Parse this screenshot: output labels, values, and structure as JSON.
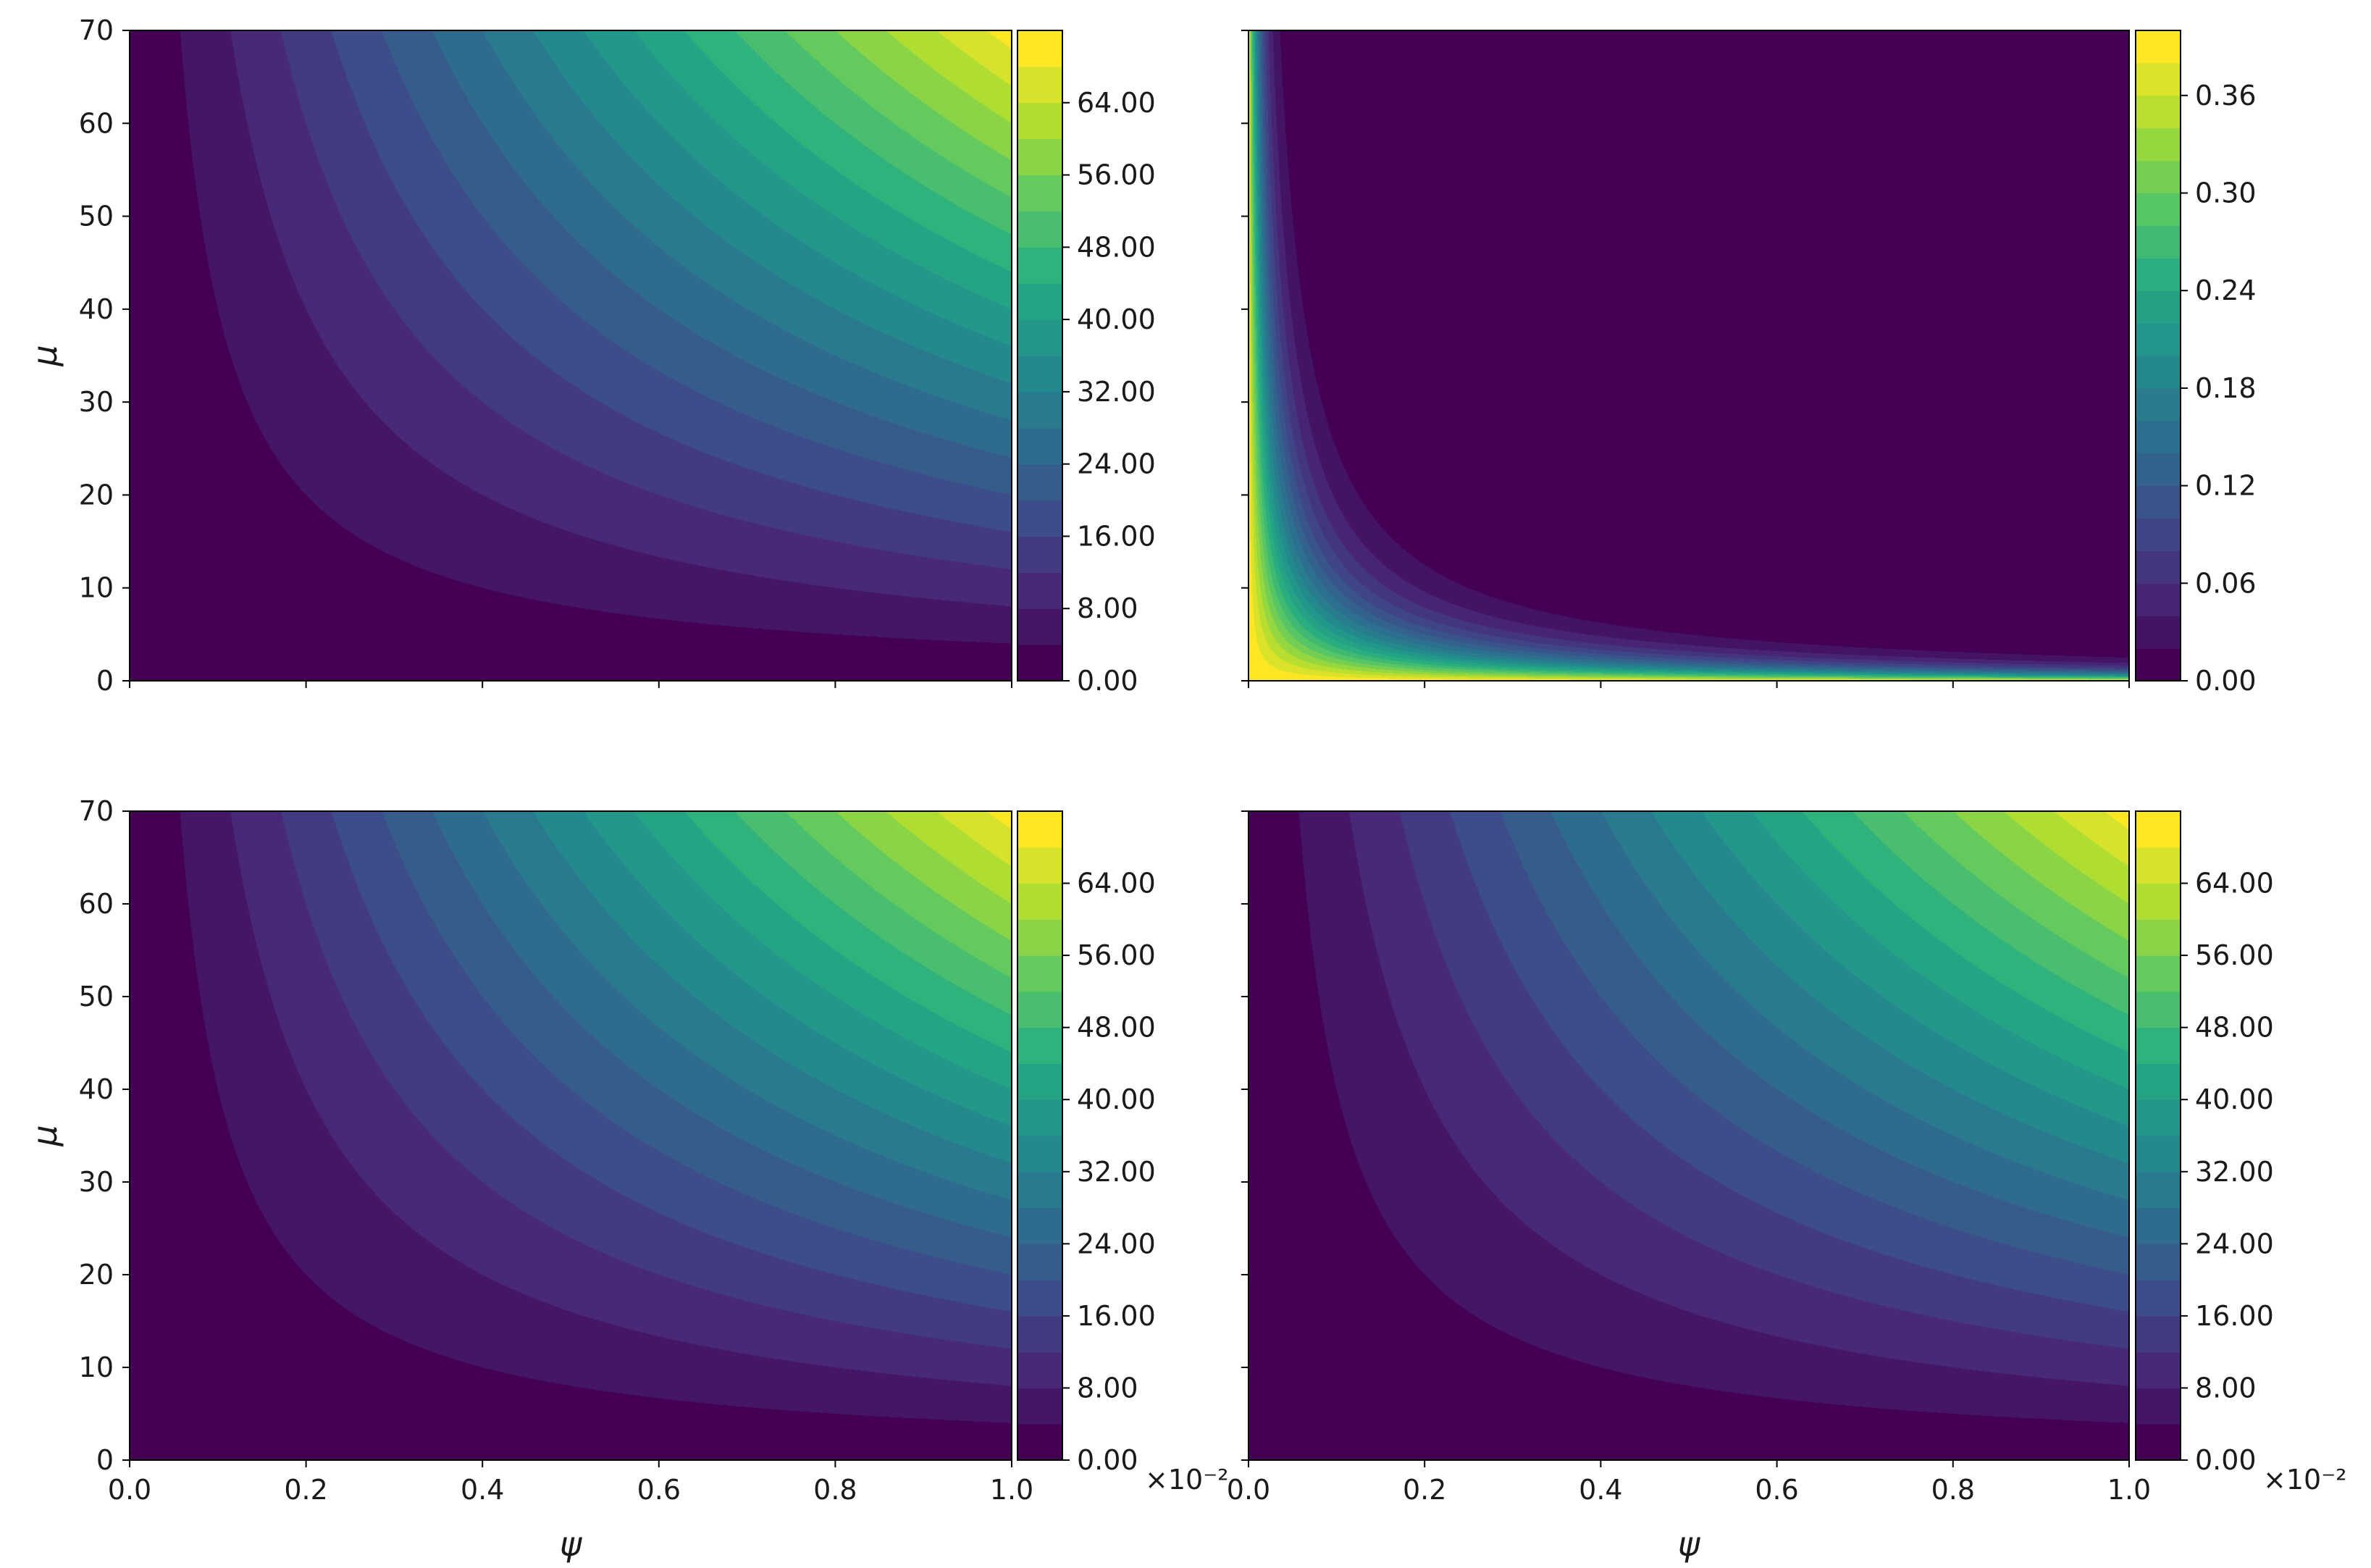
{
  "chart_data": [
    {
      "type": "contour",
      "position": "top-left",
      "xlabel": "",
      "ylabel": "μ",
      "xlim": [
        0,
        1
      ],
      "ylim": [
        0,
        70
      ],
      "xticks": [
        0.0,
        0.2,
        0.4,
        0.6,
        0.8,
        1.0
      ],
      "xticklabels": [
        "",
        "",
        "",
        "",
        "",
        ""
      ],
      "yticks": [
        0,
        10,
        20,
        30,
        40,
        50,
        60,
        70
      ],
      "yticklabels": [
        "0",
        "10",
        "20",
        "30",
        "40",
        "50",
        "60",
        "70"
      ],
      "surface": "z = psi * mu",
      "colormap": "viridis",
      "levels": [
        0,
        4,
        8,
        12,
        16,
        20,
        24,
        28,
        32,
        36,
        40,
        44,
        48,
        52,
        56,
        60,
        64,
        68,
        72
      ],
      "colorbar": {
        "ticks": [
          0,
          8,
          16,
          24,
          32,
          40,
          48,
          56,
          64
        ],
        "ticklabels": [
          "0.00",
          "8.00",
          "16.00",
          "24.00",
          "32.00",
          "40.00",
          "48.00",
          "56.00",
          "64.00"
        ],
        "offset_text": ""
      }
    },
    {
      "type": "contour",
      "position": "top-right",
      "xlabel": "",
      "ylabel": "",
      "xlim": [
        0,
        1
      ],
      "ylim": [
        0,
        70
      ],
      "xticks": [
        0.0,
        0.2,
        0.4,
        0.6,
        0.8,
        1.0
      ],
      "xticklabels": [
        "",
        "",
        "",
        "",
        "",
        ""
      ],
      "yticks": [
        0,
        10,
        20,
        30,
        40,
        50,
        60,
        70
      ],
      "yticklabels": [
        "",
        "",
        "",
        "",
        "",
        "",
        "",
        ""
      ],
      "surface": "z = 0.4 * exp(-1.2 * psi * mu)",
      "colormap": "viridis",
      "levels": [
        0,
        0.02,
        0.04,
        0.06,
        0.08,
        0.1,
        0.12,
        0.14,
        0.16,
        0.18,
        0.2,
        0.22,
        0.24,
        0.26,
        0.28,
        0.3,
        0.32,
        0.34,
        0.36,
        0.38,
        0.4
      ],
      "colorbar": {
        "ticks": [
          0,
          0.06,
          0.12,
          0.18,
          0.24,
          0.3,
          0.36
        ],
        "ticklabels": [
          "0.00",
          "0.06",
          "0.12",
          "0.18",
          "0.24",
          "0.30",
          "0.36"
        ],
        "offset_text": ""
      }
    },
    {
      "type": "contour",
      "position": "bottom-left",
      "xlabel": "ψ",
      "ylabel": "μ",
      "xlim": [
        0,
        1
      ],
      "ylim": [
        0,
        70
      ],
      "xticks": [
        0.0,
        0.2,
        0.4,
        0.6,
        0.8,
        1.0
      ],
      "xticklabels": [
        "0.0",
        "0.2",
        "0.4",
        "0.6",
        "0.8",
        "1.0"
      ],
      "yticks": [
        0,
        10,
        20,
        30,
        40,
        50,
        60,
        70
      ],
      "yticklabels": [
        "0",
        "10",
        "20",
        "30",
        "40",
        "50",
        "60",
        "70"
      ],
      "surface": "z = psi * mu",
      "colormap": "viridis",
      "levels": [
        0,
        4,
        8,
        12,
        16,
        20,
        24,
        28,
        32,
        36,
        40,
        44,
        48,
        52,
        56,
        60,
        64,
        68,
        72
      ],
      "colorbar": {
        "ticks": [
          0,
          8,
          16,
          24,
          32,
          40,
          48,
          56,
          64
        ],
        "ticklabels": [
          "0.00",
          "8.00",
          "16.00",
          "24.00",
          "32.00",
          "40.00",
          "48.00",
          "56.00",
          "64.00"
        ],
        "offset_text": "×10⁻²"
      }
    },
    {
      "type": "contour",
      "position": "bottom-right",
      "xlabel": "ψ",
      "ylabel": "",
      "xlim": [
        0,
        1
      ],
      "ylim": [
        0,
        70
      ],
      "xticks": [
        0.0,
        0.2,
        0.4,
        0.6,
        0.8,
        1.0
      ],
      "xticklabels": [
        "0.0",
        "0.2",
        "0.4",
        "0.6",
        "0.8",
        "1.0"
      ],
      "yticks": [
        0,
        10,
        20,
        30,
        40,
        50,
        60,
        70
      ],
      "yticklabels": [
        "",
        "",
        "",
        "",
        "",
        "",
        "",
        ""
      ],
      "surface": "z = psi * mu",
      "colormap": "viridis",
      "levels": [
        0,
        4,
        8,
        12,
        16,
        20,
        24,
        28,
        32,
        36,
        40,
        44,
        48,
        52,
        56,
        60,
        64,
        68,
        72
      ],
      "colorbar": {
        "ticks": [
          0,
          8,
          16,
          24,
          32,
          40,
          48,
          56,
          64
        ],
        "ticklabels": [
          "0.00",
          "8.00",
          "16.00",
          "24.00",
          "32.00",
          "40.00",
          "48.00",
          "56.00",
          "64.00"
        ],
        "offset_text": "×10⁻²"
      }
    }
  ]
}
